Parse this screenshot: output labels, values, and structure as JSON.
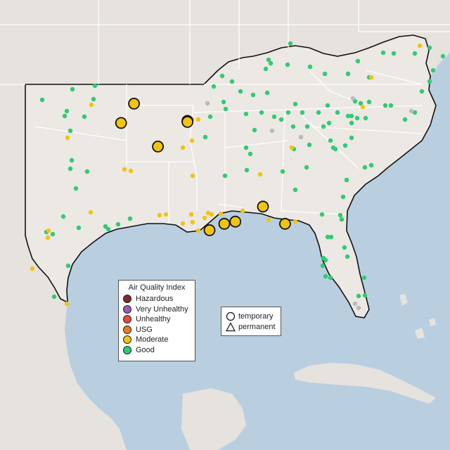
{
  "colors": {
    "ocean": "#b9cfe0",
    "land": "#ece8e4",
    "land_outside": "#e6e2de",
    "outline": "#111111",
    "state_border": "#ffffff"
  },
  "legend_aqi": {
    "title": "Air Quality Index",
    "items": [
      {
        "label": "Hazardous",
        "color": "#7e2a2a"
      },
      {
        "label": "Very Unhealthy",
        "color": "#9b59b6"
      },
      {
        "label": "Unhealthy",
        "color": "#e74c3c"
      },
      {
        "label": "USG",
        "color": "#e67e22"
      },
      {
        "label": "Moderate",
        "color": "#f1c40f"
      },
      {
        "label": "Good",
        "color": "#2ecc71"
      }
    ]
  },
  "legend_shape": {
    "items": [
      {
        "label": "temporary",
        "icon": "circle-icon"
      },
      {
        "label": "permanent",
        "icon": "triangle-icon"
      }
    ]
  },
  "large_moderate_markers": [
    {
      "lon": -97.1,
      "lat": 36.1
    },
    {
      "lon": -97.8,
      "lat": 35.2
    },
    {
      "lon": -94.2,
      "lat": 35.3
    },
    {
      "lon": -94.2,
      "lat": 35.25
    },
    {
      "lon": -95.8,
      "lat": 34.1
    },
    {
      "lon": -90.1,
      "lat": 31.3
    },
    {
      "lon": -88.9,
      "lat": 30.5
    },
    {
      "lon": -92.2,
      "lat": 30.5
    },
    {
      "lon": -91.6,
      "lat": 30.6
    },
    {
      "lon": -93.0,
      "lat": 30.2
    }
  ]
}
